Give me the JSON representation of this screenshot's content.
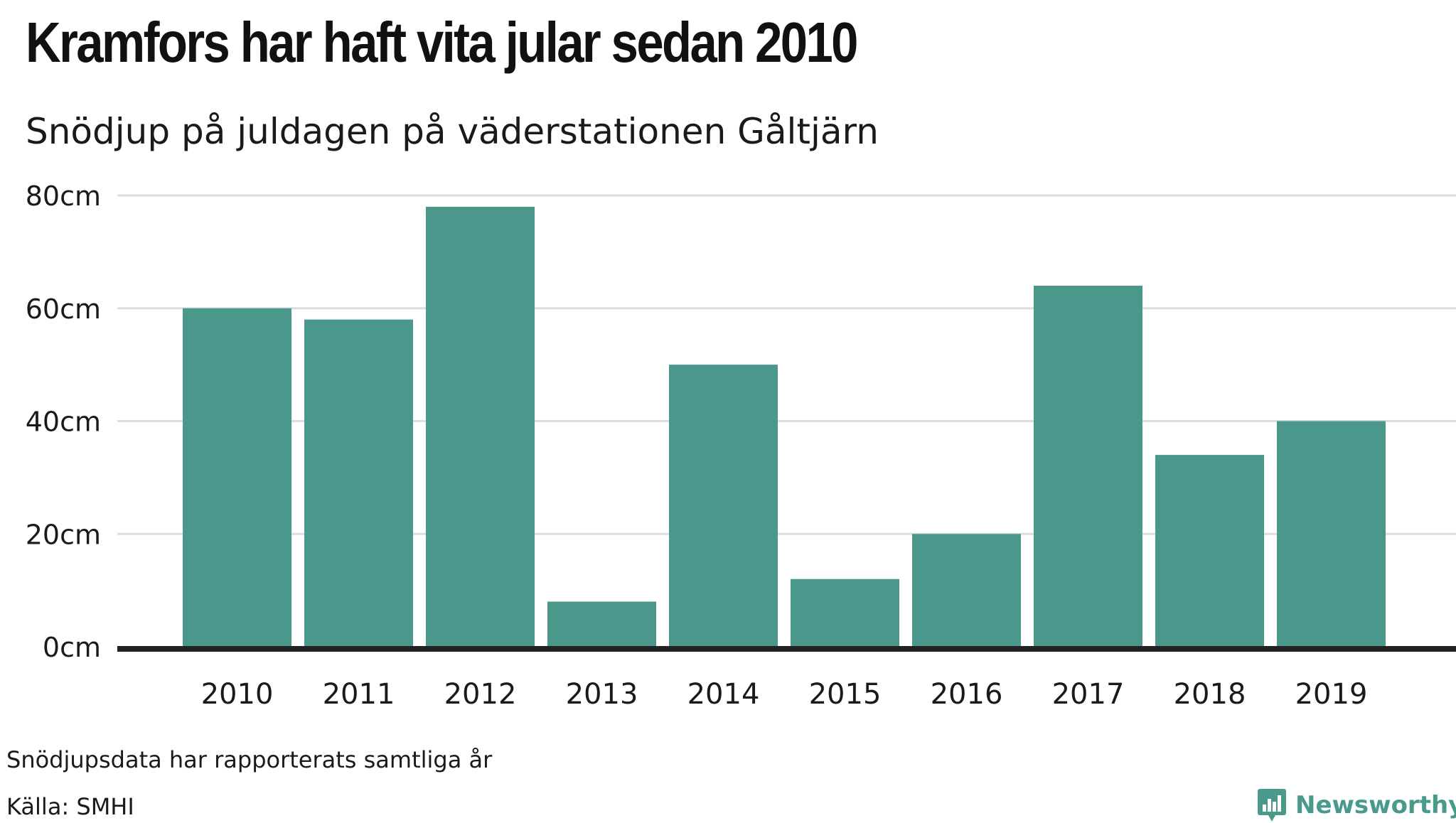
{
  "title": "Kramfors har haft vita jular sedan 2010",
  "subtitle": "Snödjup på juldagen på väderstationen Gåltjärn",
  "note": "Snödjupsdata har rapporterats samtliga år",
  "source": "Källa: SMHI",
  "brand": {
    "name": "Newsworthy",
    "icon": "newsworthy-logo-icon",
    "color": "#4a9a8c"
  },
  "chart_data": {
    "type": "bar",
    "categories": [
      "2010",
      "2011",
      "2012",
      "2013",
      "2014",
      "2015",
      "2016",
      "2017",
      "2018",
      "2019"
    ],
    "values": [
      60,
      58,
      78,
      8,
      50,
      12,
      20,
      64,
      34,
      40
    ],
    "ylim": [
      0,
      80
    ],
    "yticks": [
      0,
      20,
      40,
      60,
      80
    ],
    "ytick_labels": [
      "0cm",
      "20cm",
      "40cm",
      "60cm",
      "80cm"
    ],
    "bar_color": "#4a978b",
    "grid": true,
    "legend": false
  }
}
